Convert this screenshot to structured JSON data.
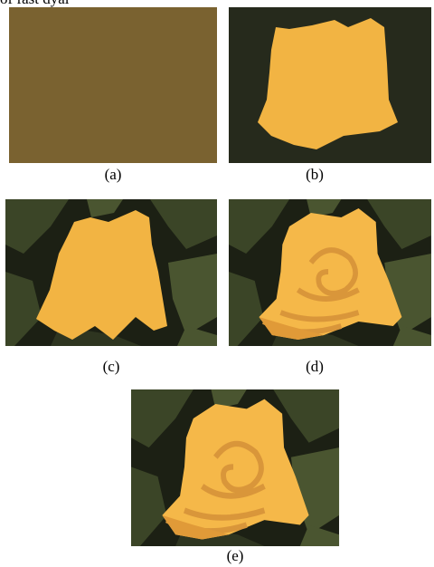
{
  "top_text": "of fast dyal",
  "panels": [
    {
      "label": "(a)"
    },
    {
      "label": "(b)"
    },
    {
      "label": "(c)"
    },
    {
      "label": "(d)"
    },
    {
      "label": "(e)"
    }
  ]
}
